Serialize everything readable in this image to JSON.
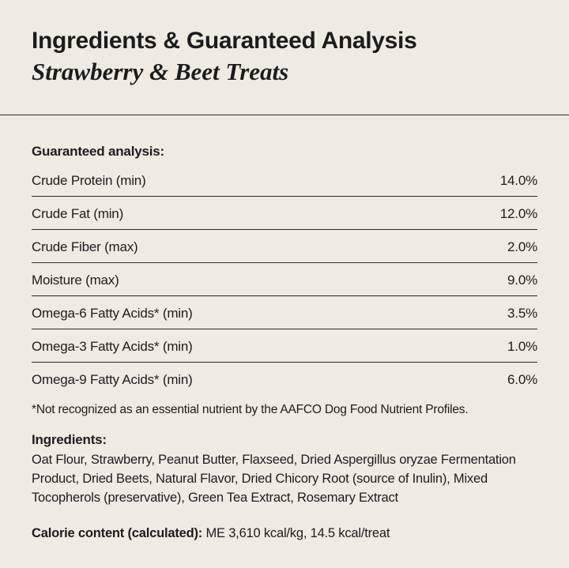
{
  "header": {
    "title": "Ingredients & Guaranteed Analysis",
    "subtitle": "Strawberry & Beet Treats"
  },
  "analysis": {
    "heading": "Guaranteed analysis:",
    "rows": [
      {
        "label": "Crude Protein (min)",
        "value": "14.0%"
      },
      {
        "label": "Crude Fat (min)",
        "value": "12.0%"
      },
      {
        "label": "Crude Fiber (max)",
        "value": "2.0%"
      },
      {
        "label": "Moisture (max)",
        "value": "9.0%"
      },
      {
        "label": "Omega-6 Fatty Acids* (min)",
        "value": "3.5%"
      },
      {
        "label": "Omega-3 Fatty Acids* (min)",
        "value": "1.0%"
      },
      {
        "label": "Omega-9 Fatty Acids* (min)",
        "value": "6.0%"
      }
    ],
    "footnote": "*Not recognized as an essential nutrient by the AAFCO Dog Food Nutrient Profiles."
  },
  "ingredients": {
    "heading": "Ingredients:",
    "text": "Oat Flour, Strawberry, Peanut Butter, Flaxseed, Dried Aspergillus oryzae Fermentation Product, Dried Beets, Natural Flavor, Dried Chicory Root (source of Inulin), Mixed Tocopherols (preservative), Green Tea Extract, Rosemary Extract"
  },
  "calorie": {
    "label": "Calorie content (calculated):",
    "value": "ME 3,610 kcal/kg, 14.5 kcal/treat"
  }
}
